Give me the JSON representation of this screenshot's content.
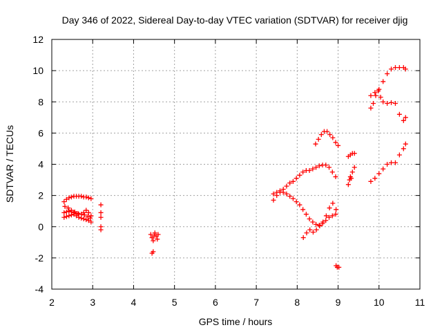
{
  "chart_data": {
    "type": "scatter",
    "title": "Day 346 of 2022, Sidereal Day-to-day VTEC variation (SDTVAR) for receiver djig",
    "xlabel": "GPS time / hours",
    "ylabel": "SDTVAR / TECUs",
    "xlim": [
      2,
      11
    ],
    "ylim": [
      -4,
      12
    ],
    "xticks": [
      "2",
      "3",
      "4",
      "5",
      "6",
      "7",
      "8",
      "9",
      "10",
      "11"
    ],
    "yticks": [
      "-4",
      "-2",
      "0",
      "2",
      "4",
      "6",
      "8",
      "10",
      "12"
    ],
    "grid": true,
    "marker": "+",
    "color": "#ff0000",
    "series": [
      {
        "x": [
          2.3,
          2.36,
          2.42,
          2.48,
          2.54,
          2.6,
          2.66,
          2.72,
          2.78,
          2.84,
          2.9,
          2.96,
          2.3,
          2.36,
          2.42,
          2.48,
          2.54,
          2.6,
          2.66,
          2.72,
          2.78,
          2.84,
          2.9,
          2.96,
          2.3,
          2.36,
          2.42,
          2.48,
          2.54,
          2.6,
          2.66,
          2.72,
          2.78,
          2.84,
          2.9,
          2.96,
          2.32,
          2.4,
          2.48,
          2.56,
          2.64,
          2.72,
          2.8,
          2.88,
          2.94,
          3.2,
          3.2,
          3.2,
          3.2,
          3.2,
          4.42,
          4.45,
          4.48,
          4.5,
          4.52,
          4.55,
          4.58,
          4.6,
          4.45,
          4.48,
          7.42,
          7.5,
          7.58,
          7.66,
          7.74,
          7.82,
          7.9,
          7.98,
          8.06,
          8.14,
          8.22,
          8.3,
          8.38,
          8.46,
          8.54,
          8.62,
          8.7,
          8.78,
          8.86,
          8.94,
          7.42,
          7.5,
          7.58,
          7.66,
          7.74,
          7.82,
          7.9,
          7.98,
          8.06,
          8.14,
          8.22,
          8.3,
          8.38,
          8.46,
          8.54,
          8.62,
          8.7,
          8.78,
          8.86,
          8.94,
          8.15,
          8.23,
          8.31,
          8.39,
          8.47,
          8.55,
          8.63,
          8.71,
          8.79,
          8.87,
          8.95,
          8.45,
          8.52,
          8.59,
          8.66,
          8.73,
          8.8,
          8.87,
          8.94,
          9.0,
          8.95,
          8.98,
          9.02,
          9.25,
          9.3,
          9.35,
          9.4,
          9.25,
          9.3,
          9.35,
          9.4,
          9.28,
          9.32,
          9.8,
          9.9,
          10.0,
          10.1,
          10.2,
          10.3,
          10.4,
          10.5,
          10.6,
          10.65,
          9.8,
          9.86,
          9.92,
          9.98,
          10.04,
          10.1,
          10.2,
          10.3,
          10.4,
          10.5,
          10.6,
          10.65,
          9.8,
          9.9,
          10.0,
          10.1,
          10.2,
          10.3,
          10.4,
          10.5,
          10.6,
          10.65
        ],
        "y": [
          1.6,
          1.75,
          1.85,
          1.9,
          1.95,
          1.95,
          1.95,
          1.95,
          1.9,
          1.9,
          1.85,
          1.8,
          0.9,
          0.95,
          1.0,
          0.95,
          0.9,
          0.85,
          0.8,
          0.8,
          0.9,
          1.05,
          0.9,
          0.7,
          0.6,
          0.65,
          0.7,
          0.75,
          0.8,
          0.7,
          0.6,
          0.55,
          0.5,
          0.45,
          0.4,
          0.3,
          1.3,
          1.2,
          1.05,
          0.95,
          0.85,
          0.8,
          0.75,
          0.65,
          0.55,
          1.4,
          0.9,
          0.6,
          0.0,
          -0.2,
          -0.5,
          -0.7,
          -0.9,
          -0.6,
          -0.4,
          -0.6,
          -0.8,
          -0.5,
          -1.7,
          -1.6,
          1.7,
          2.0,
          2.2,
          2.4,
          2.6,
          2.8,
          2.9,
          3.1,
          3.3,
          3.5,
          3.6,
          3.6,
          3.7,
          3.8,
          3.9,
          3.95,
          3.95,
          3.8,
          3.5,
          3.2,
          2.1,
          2.2,
          2.3,
          2.2,
          2.1,
          1.95,
          1.8,
          1.6,
          1.4,
          1.1,
          0.8,
          0.5,
          0.3,
          0.15,
          0.1,
          0.2,
          0.4,
          0.6,
          0.7,
          0.8,
          -0.7,
          -0.4,
          -0.2,
          -0.35,
          -0.2,
          0.05,
          0.3,
          0.7,
          1.2,
          1.5,
          1.1,
          5.3,
          5.6,
          5.9,
          6.1,
          6.1,
          5.9,
          5.7,
          5.4,
          5.2,
          -2.5,
          -2.6,
          -2.6,
          2.7,
          3.2,
          3.5,
          3.8,
          4.5,
          4.6,
          4.7,
          4.7,
          3.0,
          3.1,
          2.9,
          3.1,
          3.4,
          3.7,
          4.0,
          4.1,
          4.1,
          4.6,
          5.0,
          5.3,
          7.6,
          7.9,
          8.4,
          8.7,
          8.3,
          8.0,
          7.9,
          7.95,
          7.9,
          7.2,
          6.8,
          7.0,
          8.4,
          8.6,
          8.8,
          9.3,
          9.8,
          10.1,
          10.2,
          10.2,
          10.2,
          10.1
        ]
      }
    ]
  }
}
